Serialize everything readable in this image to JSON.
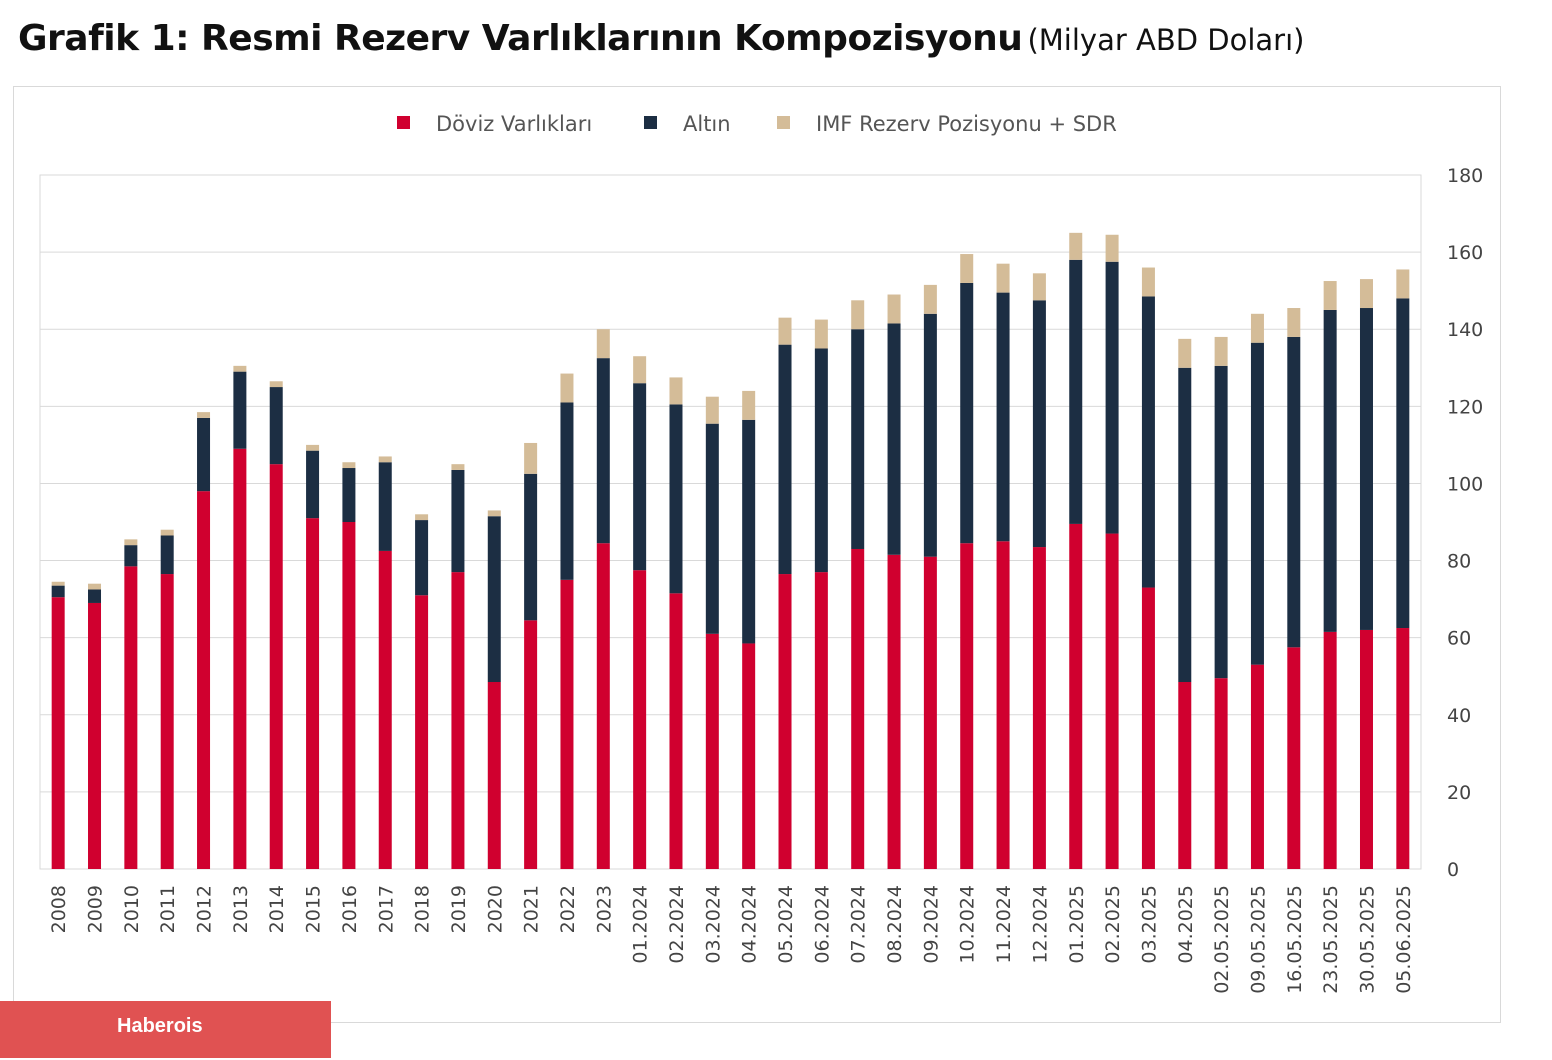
{
  "title": {
    "main": "Grafik 1: Resmi Rezerv Varlıklarının Kompozisyonu",
    "unit": "(Milyar ABD Doları)"
  },
  "watermark": "Haberois",
  "chart_data": {
    "type": "bar",
    "stacked": true,
    "title": "Grafik 1: Resmi Rezerv Varlıklarının Kompozisyonu (Milyar ABD Doları)",
    "legend_position": "top-center",
    "y_axis_position": "right",
    "grid": true,
    "ylim": [
      0,
      180
    ],
    "yticks": [
      0,
      20,
      40,
      60,
      80,
      100,
      120,
      140,
      160,
      180
    ],
    "categories": [
      "2008",
      "2009",
      "2010",
      "2011",
      "2012",
      "2013",
      "2014",
      "2015",
      "2016",
      "2017",
      "2018",
      "2019",
      "2020",
      "2021",
      "2022",
      "2023",
      "01.2024",
      "02.2024",
      "03.2024",
      "04.2024",
      "05.2024",
      "06.2024",
      "07.2024",
      "08.2024",
      "09.2024",
      "10.2024",
      "11.2024",
      "12.2024",
      "01.2025",
      "02.2025",
      "03.2025",
      "04.2025",
      "02.05.2025",
      "09.05.2025",
      "16.05.2025",
      "23.05.2025",
      "30.05.2025",
      "05.06.2025"
    ],
    "series": [
      {
        "name": "Döviz Varlıkları",
        "color": "#d0002f",
        "values": [
          70.5,
          69,
          78.5,
          76.5,
          98,
          109,
          105,
          91,
          90,
          82.5,
          71,
          77,
          48.5,
          64.5,
          75,
          84.5,
          77.5,
          71.5,
          61,
          58.5,
          76.5,
          77,
          83,
          81.5,
          81,
          84.5,
          85,
          83.5,
          89.5,
          87,
          73,
          48.5,
          49.5,
          53,
          57.5,
          61.5,
          62,
          62.5
        ]
      },
      {
        "name": "Altın",
        "color": "#1c2e43",
        "values": [
          3,
          3.5,
          5.5,
          10,
          19,
          20,
          20,
          17.5,
          14,
          23,
          19.5,
          26.5,
          43,
          38,
          46,
          48,
          48.5,
          49,
          54.5,
          58,
          59.5,
          58,
          57,
          60,
          63,
          67.5,
          64.5,
          64,
          68.5,
          70.5,
          75.5,
          81.5,
          81,
          83.5,
          80.5,
          83.5,
          83.5,
          85.5
        ]
      },
      {
        "name": "IMF Rezerv Pozisyonu + SDR",
        "color": "#d4bc98",
        "values": [
          1,
          1.5,
          1.5,
          1.5,
          1.5,
          1.5,
          1.5,
          1.5,
          1.5,
          1.5,
          1.5,
          1.5,
          1.5,
          8,
          7.5,
          7.5,
          7,
          7,
          7,
          7.5,
          7,
          7.5,
          7.5,
          7.5,
          7.5,
          7.5,
          7.5,
          7,
          7,
          7,
          7.5,
          7.5,
          7.5,
          7.5,
          7.5,
          7.5,
          7.5,
          7.5
        ]
      }
    ]
  }
}
